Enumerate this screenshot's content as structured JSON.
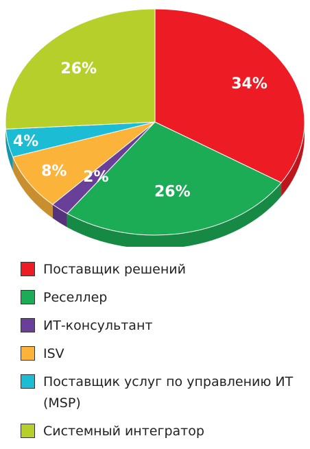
{
  "chart_data": {
    "type": "pie",
    "title": "",
    "series": [
      {
        "label": "Поставщик решений",
        "value": 34,
        "display": "34%",
        "color": "#ed1c24"
      },
      {
        "label": "Реселлер",
        "value": 26,
        "display": "26%",
        "color": "#1cac56"
      },
      {
        "label": "ИТ-консультант",
        "value": 2,
        "display": "2%",
        "color": "#6a3f9a"
      },
      {
        "label": "ISV",
        "value": 8,
        "display": "8%",
        "color": "#fbb33a"
      },
      {
        "label": "Поставщик услуг по управлению ИТ (MSP)",
        "value": 4,
        "display": "4%",
        "color": "#1bbcd4"
      },
      {
        "label": "Системный интегратор",
        "value": 26,
        "display": "26%",
        "color": "#b7cf2a"
      }
    ],
    "legend_position": "bottom"
  }
}
